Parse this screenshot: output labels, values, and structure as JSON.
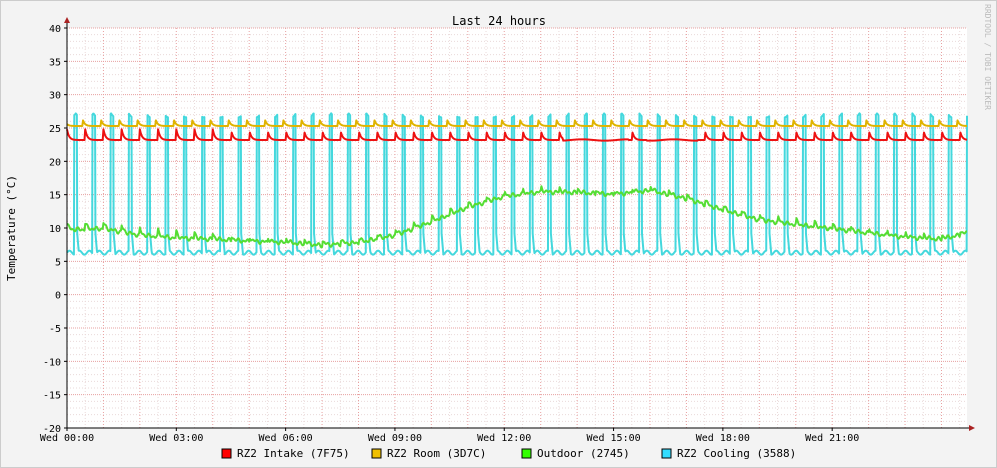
{
  "chart_data": {
    "type": "line",
    "title": "Last 24 hours",
    "ylabel": "Temperature (°C)",
    "watermark": "RRDTOOL / TOBI OETIKER",
    "ylim": [
      -20,
      40
    ],
    "y_ticks": [
      -20,
      -15,
      -10,
      -5,
      0,
      5,
      10,
      15,
      20,
      25,
      30,
      35,
      40
    ],
    "xlim_hours": [
      0,
      24.7
    ],
    "x_ticks": [
      {
        "hour": 0,
        "label": "Wed 00:00"
      },
      {
        "hour": 3,
        "label": "Wed 03:00"
      },
      {
        "hour": 6,
        "label": "Wed 06:00"
      },
      {
        "hour": 9,
        "label": "Wed 09:00"
      },
      {
        "hour": 12,
        "label": "Wed 12:00"
      },
      {
        "hour": 15,
        "label": "Wed 15:00"
      },
      {
        "hour": 18,
        "label": "Wed 18:00"
      },
      {
        "hour": 21,
        "label": "Wed 21:00"
      }
    ],
    "grid": true,
    "legend_position": "bottom",
    "series": [
      {
        "name": "RZ2 Intake (7F75)",
        "color": "#ee1111",
        "swatch": "#ff0000",
        "pattern": "sawtooth",
        "base": 23.2,
        "peak": 24.8,
        "gaps": [
          [
            13.6,
            15.4
          ],
          [
            15.9,
            17.3
          ]
        ]
      },
      {
        "name": "RZ2 Room (3D7C)",
        "color": "#e0b300",
        "swatch": "#f0c000",
        "pattern": "sawtooth",
        "base": 25.3,
        "peak": 26.3,
        "gaps": []
      },
      {
        "name": "Outdoor (2745)",
        "color": "#55dd33",
        "swatch": "#33ff00",
        "pattern": "trend",
        "points": [
          [
            0,
            10
          ],
          [
            1,
            10.2
          ],
          [
            2,
            9.2
          ],
          [
            3,
            8.8
          ],
          [
            4,
            8.6
          ],
          [
            5,
            8.3
          ],
          [
            6,
            8.1
          ],
          [
            7,
            7.7
          ],
          [
            8,
            8.1
          ],
          [
            9,
            9.2
          ],
          [
            10,
            11.2
          ],
          [
            11,
            13.4
          ],
          [
            12,
            15.0
          ],
          [
            13,
            15.7
          ],
          [
            14,
            15.6
          ],
          [
            15,
            15.3
          ],
          [
            16,
            15.9
          ],
          [
            17,
            14.7
          ],
          [
            18,
            13.0
          ],
          [
            19,
            11.5
          ],
          [
            20,
            10.8
          ],
          [
            21,
            10.2
          ],
          [
            22,
            9.5
          ],
          [
            23,
            8.9
          ],
          [
            24,
            8.6
          ],
          [
            24.7,
            9.5
          ]
        ]
      },
      {
        "name": "RZ2 Cooling (3588)",
        "color": "#44d8dd",
        "swatch": "#33ddff",
        "pattern": "pulse",
        "base": 6.3,
        "peak": 27.2
      }
    ]
  }
}
